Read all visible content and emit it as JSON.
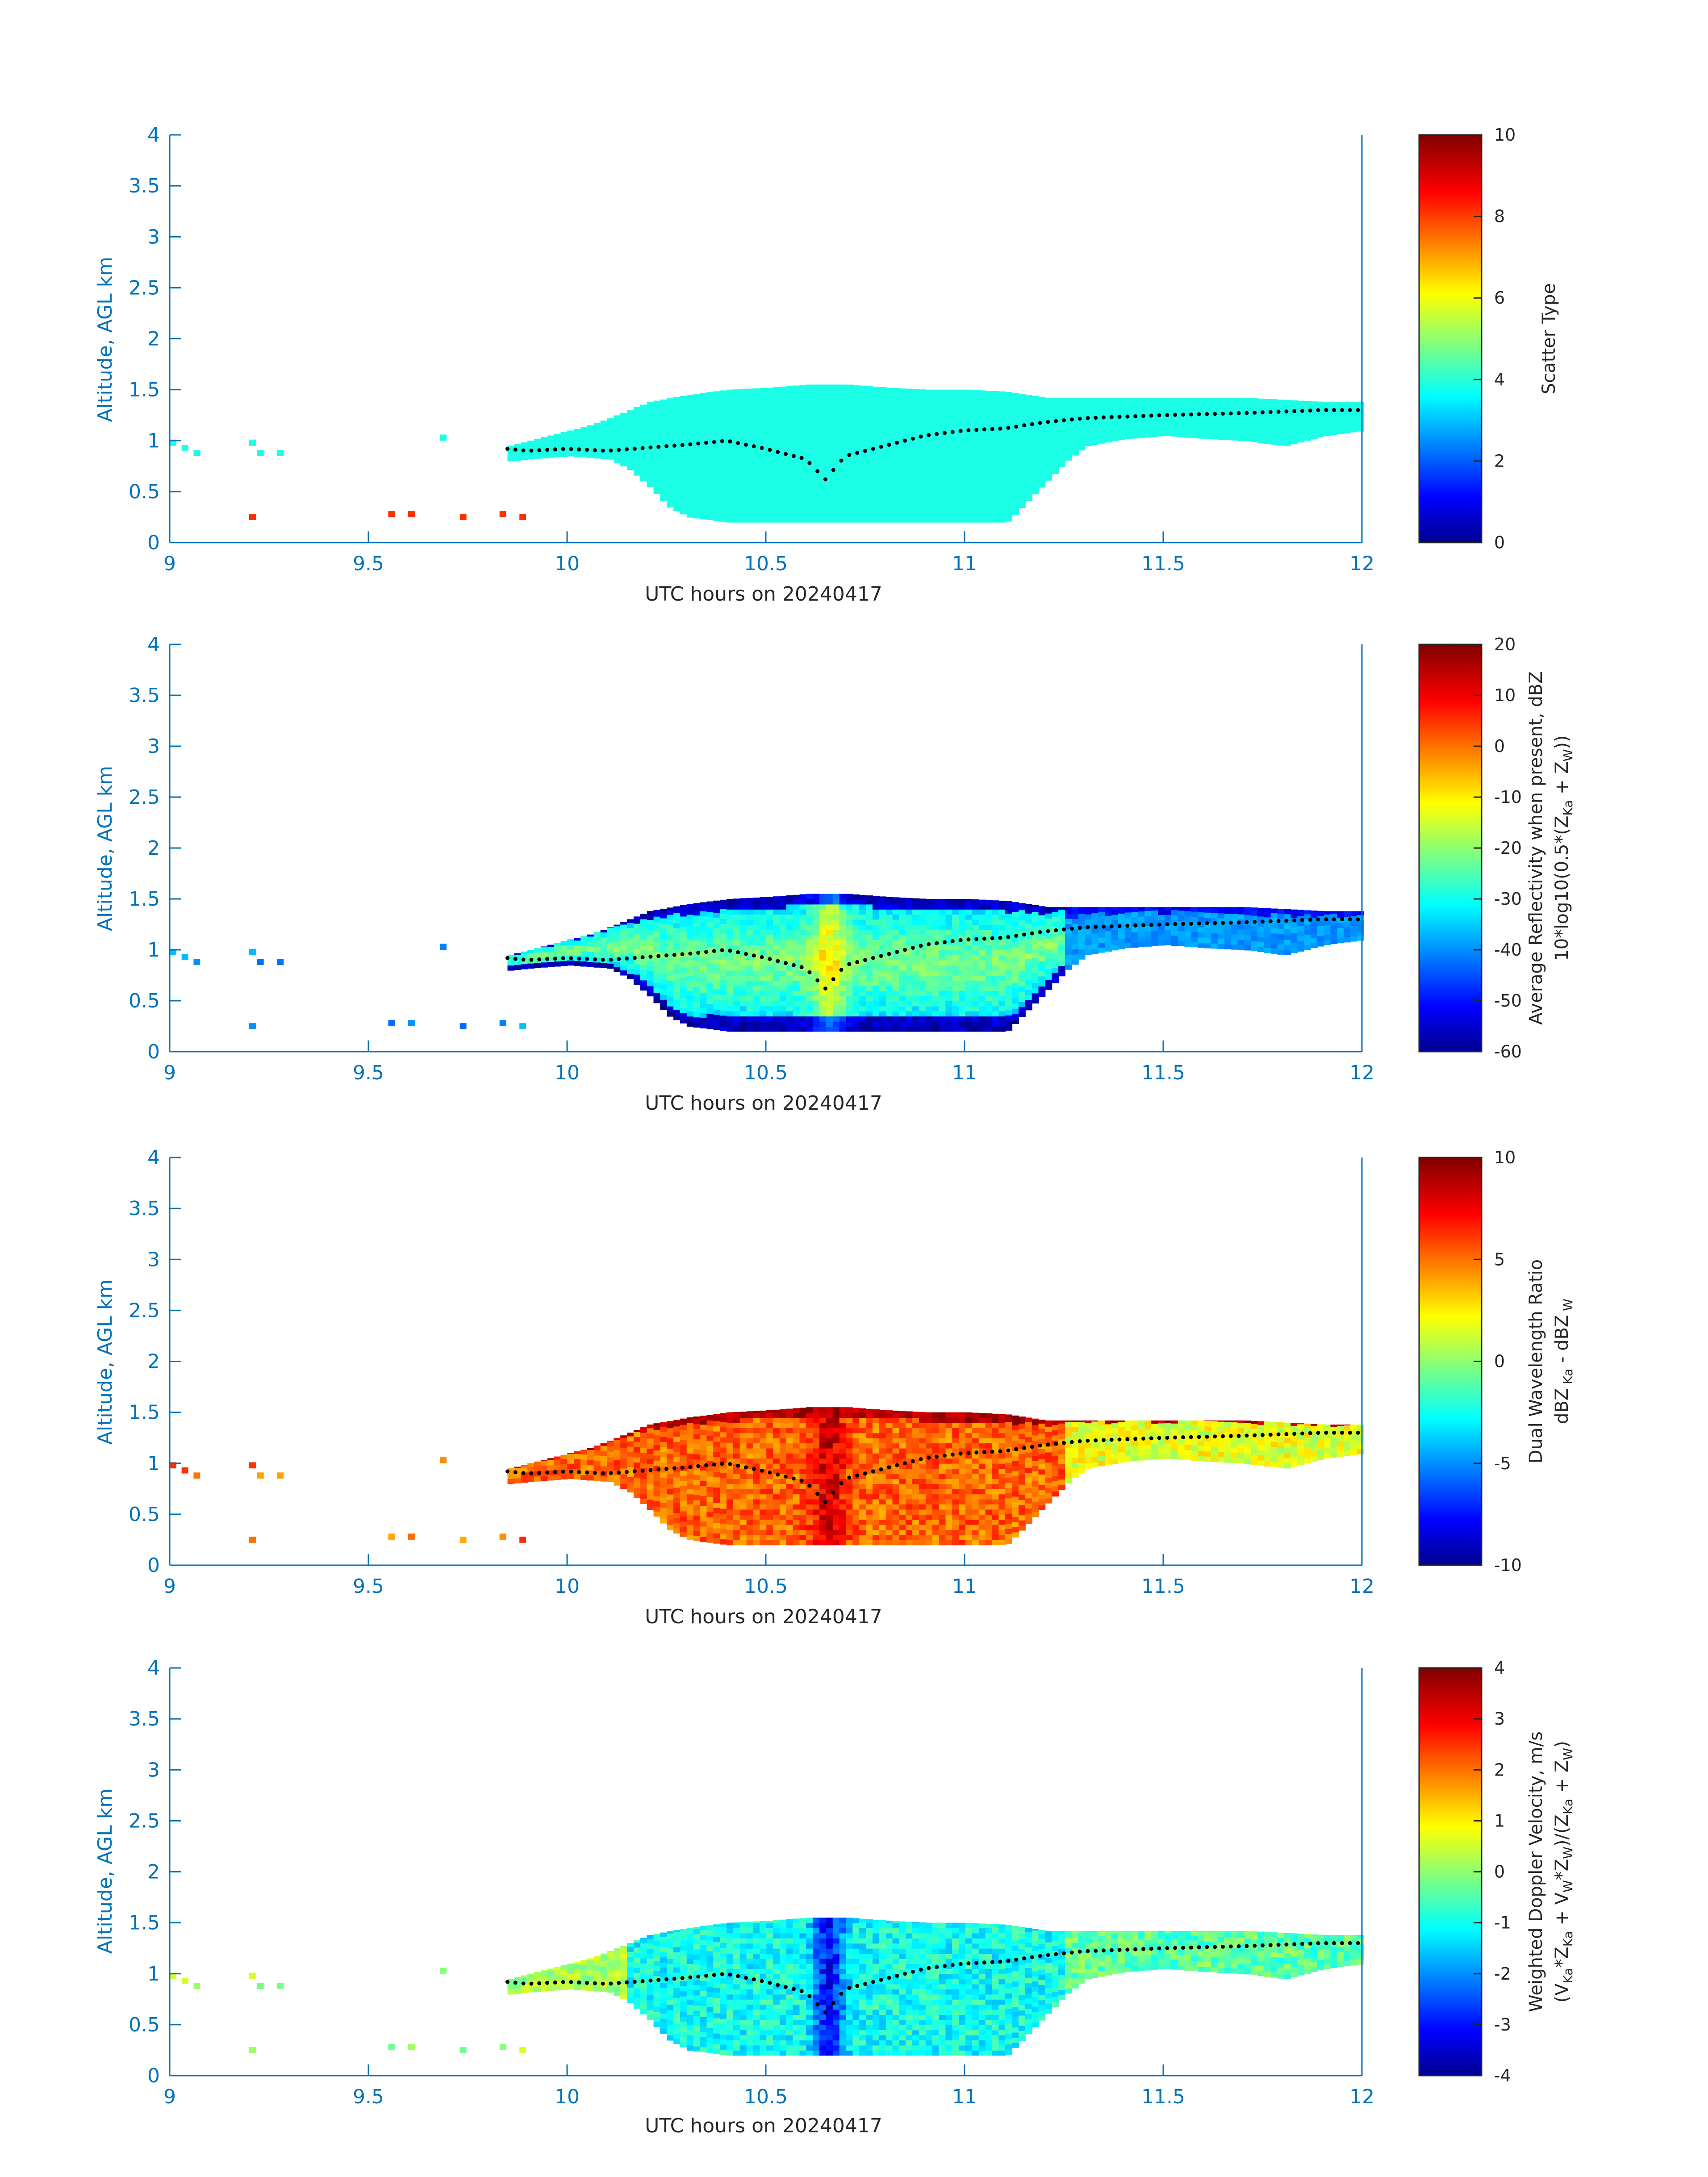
{
  "figure": {
    "background": "#ffffff",
    "axis_color": "#0072BD"
  },
  "chart_data": [
    {
      "type": "heatmap",
      "panel": "scatter-type",
      "xlabel": "UTC hours on 20240417",
      "ylabel": "Altitude, AGL km",
      "xlim": [
        9,
        12
      ],
      "ylim": [
        0,
        4
      ],
      "xticks": [
        "9",
        "9.5",
        "10",
        "10.5",
        "11",
        "11.5",
        "12"
      ],
      "yticks": [
        "0",
        "0.5",
        "1",
        "1.5",
        "2",
        "2.5",
        "3",
        "3.5",
        "4"
      ],
      "colorbar": {
        "label_lines": [
          "Scatter Type"
        ],
        "clim": [
          0,
          10
        ],
        "ticks": [
          "0",
          "2",
          "4",
          "6",
          "8",
          "10"
        ],
        "colormap": "jet"
      },
      "field": "scatter"
    },
    {
      "type": "heatmap",
      "panel": "reflectivity",
      "xlabel": "UTC hours on 20240417",
      "ylabel": "Altitude, AGL km",
      "xlim": [
        9,
        12
      ],
      "ylim": [
        0,
        4
      ],
      "xticks": [
        "9",
        "9.5",
        "10",
        "10.5",
        "11",
        "11.5",
        "12"
      ],
      "yticks": [
        "0",
        "0.5",
        "1",
        "1.5",
        "2",
        "2.5",
        "3",
        "3.5",
        "4"
      ],
      "colorbar": {
        "label_lines": [
          [
            {
              "t": "Average Reflectivity when present, dBZ"
            }
          ],
          [
            {
              "t": "10*log10(0.5*(Z"
            },
            {
              "t": "Ka",
              "sub": true
            },
            {
              "t": " + Z"
            },
            {
              "t": "W",
              "sub": true
            },
            {
              "t": "))"
            }
          ]
        ],
        "clim": [
          -60,
          20
        ],
        "ticks": [
          "-60",
          "-50",
          "-40",
          "-30",
          "-20",
          "-10",
          "0",
          "10",
          "20"
        ],
        "colormap": "jet"
      },
      "field": "reflectivity"
    },
    {
      "type": "heatmap",
      "panel": "dwr",
      "xlabel": "UTC hours on 20240417",
      "ylabel": "Altitude, AGL km",
      "xlim": [
        9,
        12
      ],
      "ylim": [
        0,
        4
      ],
      "xticks": [
        "9",
        "9.5",
        "10",
        "10.5",
        "11",
        "11.5",
        "12"
      ],
      "yticks": [
        "0",
        "0.5",
        "1",
        "1.5",
        "2",
        "2.5",
        "3",
        "3.5",
        "4"
      ],
      "colorbar": {
        "label_lines": [
          [
            {
              "t": "Dual Wavelength Ratio"
            }
          ],
          [
            {
              "t": "dBZ"
            },
            {
              "t": " Ka",
              "sub": true
            },
            {
              "t": " - dBZ"
            },
            {
              "t": " W",
              "sub": true
            }
          ]
        ],
        "clim": [
          -10,
          10
        ],
        "ticks": [
          "-10",
          "-5",
          "0",
          "5",
          "10"
        ],
        "colormap": "jet"
      },
      "field": "dwr"
    },
    {
      "type": "heatmap",
      "panel": "doppler",
      "xlabel": "UTC hours on 20240417",
      "ylabel": "Altitude, AGL km",
      "xlim": [
        9,
        12
      ],
      "ylim": [
        0,
        4
      ],
      "xticks": [
        "9",
        "9.5",
        "10",
        "10.5",
        "11",
        "11.5",
        "12"
      ],
      "yticks": [
        "0",
        "0.5",
        "1",
        "1.5",
        "2",
        "2.5",
        "3",
        "3.5",
        "4"
      ],
      "colorbar": {
        "label_lines": [
          [
            {
              "t": "Weighted Doppler Velocity, m/s"
            }
          ],
          [
            {
              "t": "(V"
            },
            {
              "t": "Ka",
              "sub": true
            },
            {
              "t": "*Z"
            },
            {
              "t": "Ka",
              "sub": true
            },
            {
              "t": " + V"
            },
            {
              "t": "W",
              "sub": true
            },
            {
              "t": "*Z"
            },
            {
              "t": "W",
              "sub": true
            },
            {
              "t": ")/(Z"
            },
            {
              "t": "Ka",
              "sub": true
            },
            {
              "t": " + Z"
            },
            {
              "t": "W",
              "sub": true
            },
            {
              "t": ")"
            }
          ]
        ],
        "clim": [
          -4,
          4
        ],
        "ticks": [
          "-4",
          "-3",
          "-2",
          "-1",
          "0",
          "1",
          "2",
          "3",
          "4"
        ],
        "colormap": "jet"
      },
      "field": "doppler"
    }
  ],
  "cloud_field": {
    "x_range": [
      9.85,
      12
    ],
    "top_km": [
      [
        9.85,
        0.95
      ],
      [
        9.9,
        1.0
      ],
      [
        9.95,
        1.05
      ],
      [
        10.0,
        1.1
      ],
      [
        10.05,
        1.15
      ],
      [
        10.1,
        1.22
      ],
      [
        10.15,
        1.3
      ],
      [
        10.2,
        1.38
      ],
      [
        10.3,
        1.45
      ],
      [
        10.4,
        1.5
      ],
      [
        10.5,
        1.52
      ],
      [
        10.6,
        1.55
      ],
      [
        10.7,
        1.55
      ],
      [
        10.8,
        1.52
      ],
      [
        10.9,
        1.5
      ],
      [
        11.0,
        1.5
      ],
      [
        11.1,
        1.48
      ],
      [
        11.2,
        1.42
      ],
      [
        11.3,
        1.42
      ],
      [
        11.5,
        1.42
      ],
      [
        11.7,
        1.42
      ],
      [
        11.9,
        1.38
      ],
      [
        12.0,
        1.38
      ]
    ],
    "base_km": [
      [
        9.85,
        0.8
      ],
      [
        9.9,
        0.82
      ],
      [
        10.0,
        0.85
      ],
      [
        10.1,
        0.82
      ],
      [
        10.15,
        0.72
      ],
      [
        10.2,
        0.55
      ],
      [
        10.25,
        0.35
      ],
      [
        10.3,
        0.25
      ],
      [
        10.4,
        0.2
      ],
      [
        10.6,
        0.2
      ],
      [
        10.8,
        0.2
      ],
      [
        11.0,
        0.2
      ],
      [
        11.1,
        0.2
      ],
      [
        11.15,
        0.4
      ],
      [
        11.2,
        0.6
      ],
      [
        11.25,
        0.8
      ],
      [
        11.3,
        0.95
      ],
      [
        11.4,
        1.02
      ],
      [
        11.5,
        1.05
      ],
      [
        11.6,
        1.02
      ],
      [
        11.7,
        1.0
      ],
      [
        11.8,
        0.95
      ],
      [
        11.9,
        1.05
      ],
      [
        12.0,
        1.1
      ]
    ],
    "ceilometer_km": [
      [
        9.85,
        0.92
      ],
      [
        9.9,
        0.9
      ],
      [
        10.0,
        0.92
      ],
      [
        10.1,
        0.9
      ],
      [
        10.2,
        0.93
      ],
      [
        10.3,
        0.96
      ],
      [
        10.4,
        1.0
      ],
      [
        10.5,
        0.92
      ],
      [
        10.6,
        0.82
      ],
      [
        10.65,
        0.62
      ],
      [
        10.7,
        0.85
      ],
      [
        10.8,
        0.95
      ],
      [
        10.9,
        1.05
      ],
      [
        11.0,
        1.1
      ],
      [
        11.1,
        1.12
      ],
      [
        11.2,
        1.18
      ],
      [
        11.3,
        1.22
      ],
      [
        11.5,
        1.25
      ],
      [
        11.7,
        1.27
      ],
      [
        11.9,
        1.3
      ],
      [
        12.0,
        1.3
      ]
    ]
  },
  "isolated_pixels": [
    {
      "x": 9.0,
      "y": 0.95
    },
    {
      "x": 9.03,
      "y": 0.9
    },
    {
      "x": 9.06,
      "y": 0.85
    },
    {
      "x": 9.2,
      "y": 0.95
    },
    {
      "x": 9.22,
      "y": 0.85
    },
    {
      "x": 9.27,
      "y": 0.85
    },
    {
      "x": 9.2,
      "y": 0.22
    },
    {
      "x": 9.55,
      "y": 0.25
    },
    {
      "x": 9.6,
      "y": 0.25
    },
    {
      "x": 9.68,
      "y": 1.0
    },
    {
      "x": 9.73,
      "y": 0.22
    },
    {
      "x": 9.83,
      "y": 0.25
    },
    {
      "x": 9.88,
      "y": 0.22
    }
  ]
}
